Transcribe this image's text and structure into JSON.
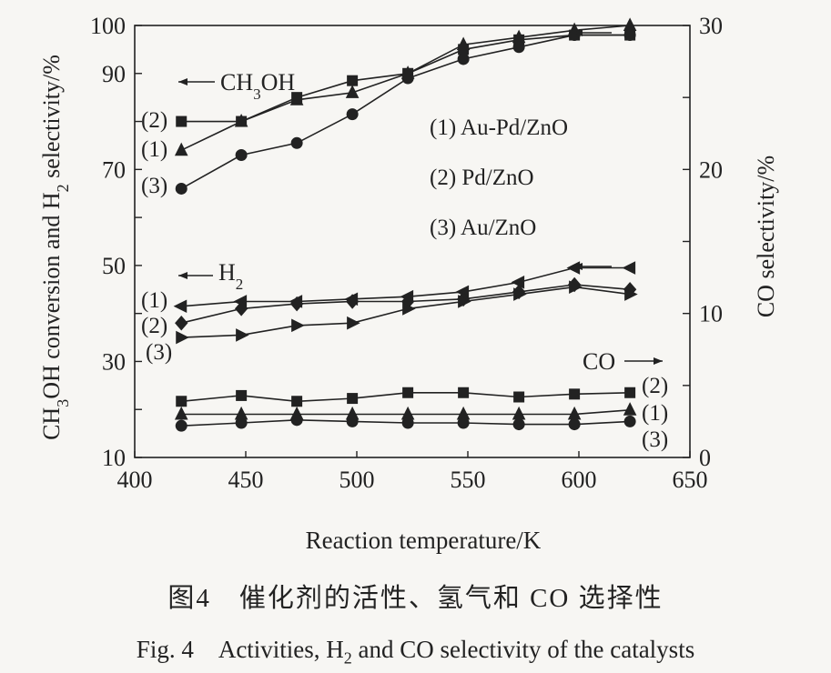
{
  "chart_data": {
    "type": "line",
    "xlabel": "Reaction temperature/K",
    "ylabel_left": {
      "pre": "CH",
      "sub1": "3",
      "mid": "OH conversion and H",
      "sub2": "2",
      "post": " selectivity/%"
    },
    "ylabel_right": "CO selectivity/%",
    "xlim": [
      400,
      650
    ],
    "ylim_left": [
      10,
      100
    ],
    "ylim_right": [
      0,
      30
    ],
    "xticks": [
      "400",
      "450",
      "500",
      "550",
      "600",
      "650"
    ],
    "yticks_left": [
      "10",
      "30",
      "50",
      "70",
      "90",
      "100"
    ],
    "yticks_right": [
      "0",
      "10",
      "20",
      "30"
    ],
    "grid": false,
    "legend": {
      "placement": "center-right",
      "items": [
        "(1) Au-Pd/ZnO",
        "(2) Pd/ZnO",
        "(3) Au/ZnO"
      ]
    },
    "group_labels": {
      "ch3oh": {
        "pre": "CH",
        "sub": "3",
        "post": "OH"
      },
      "h2": {
        "pre": "H",
        "sub": "2"
      },
      "co": "CO"
    },
    "series_tags": [
      "(1)",
      "(2)",
      "(3)"
    ],
    "x": [
      421,
      448,
      473,
      498,
      523,
      548,
      573,
      598,
      623
    ],
    "series": [
      {
        "group": "CH3OH",
        "tag": "(1)",
        "axis": "left",
        "marker": "triangle-up",
        "values": [
          74,
          80,
          84.5,
          86,
          90,
          96,
          97.5,
          99,
          100
        ]
      },
      {
        "group": "CH3OH",
        "tag": "(2)",
        "axis": "left",
        "marker": "square",
        "values": [
          80,
          80,
          85,
          88.5,
          90,
          95,
          97,
          98,
          98
        ]
      },
      {
        "group": "CH3OH",
        "tag": "(3)",
        "axis": "left",
        "marker": "circle",
        "values": [
          66,
          73,
          75.5,
          81.5,
          89,
          93,
          95.5,
          98,
          98
        ]
      },
      {
        "group": "H2",
        "tag": "(1)",
        "axis": "left",
        "marker": "triangle-left",
        "values": [
          41.5,
          42.5,
          42.5,
          43,
          43.5,
          44.5,
          46.5,
          49.5,
          49.5
        ]
      },
      {
        "group": "H2",
        "tag": "(2)",
        "axis": "left",
        "marker": "diamond",
        "values": [
          38,
          41,
          42,
          42.5,
          42.5,
          43,
          44.5,
          46,
          45
        ]
      },
      {
        "group": "H2",
        "tag": "(3)",
        "axis": "left",
        "marker": "triangle-right",
        "values": [
          35,
          35.5,
          37.5,
          38,
          41,
          42.5,
          44,
          45.5,
          44
        ]
      },
      {
        "group": "CO",
        "tag": "(2)",
        "axis": "right",
        "marker": "square",
        "values": [
          3.9,
          4.3,
          3.9,
          4.1,
          4.5,
          4.5,
          4.2,
          4.4,
          4.5
        ]
      },
      {
        "group": "CO",
        "tag": "(1)",
        "axis": "right",
        "marker": "triangle-up",
        "values": [
          3.0,
          3.0,
          3.0,
          3.0,
          3.0,
          3.0,
          3.0,
          3.0,
          3.3
        ]
      },
      {
        "group": "CO",
        "tag": "(3)",
        "axis": "right",
        "marker": "circle",
        "values": [
          2.2,
          2.4,
          2.6,
          2.5,
          2.4,
          2.4,
          2.3,
          2.3,
          2.5
        ]
      }
    ]
  },
  "caption": {
    "cn": "图4　催化剂的活性、氢气和 CO 选择性",
    "en_a": "Fig. 4　Activities, H",
    "en_sub": "2",
    "en_b": " and CO selectivity of the catalysts"
  }
}
